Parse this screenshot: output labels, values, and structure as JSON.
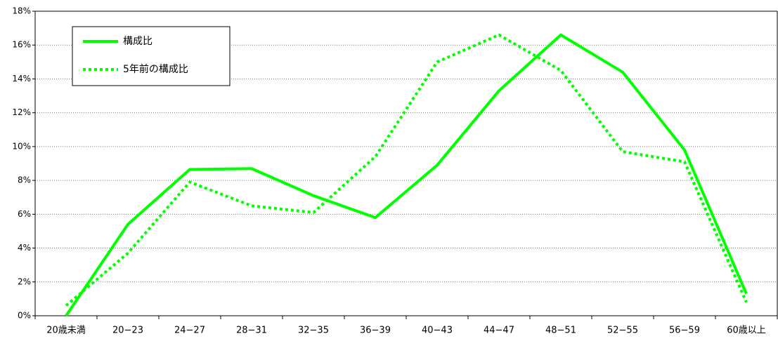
{
  "chart_data": {
    "type": "line",
    "categories": [
      "20歳未満",
      "20−23",
      "24−27",
      "28−31",
      "32−35",
      "36−39",
      "40−43",
      "44−47",
      "48−51",
      "52−55",
      "56−59",
      "60歳以上"
    ],
    "series": [
      {
        "name": "構成比",
        "color": "#00ff00",
        "style": "solid",
        "values": [
          0,
          5.4,
          8.65,
          8.7,
          7.1,
          5.8,
          8.9,
          13.3,
          16.6,
          14.4,
          9.8,
          1.3
        ]
      },
      {
        "name": "5年前の構成比",
        "color": "#00ff00",
        "style": "dotted",
        "values": [
          0.6,
          3.7,
          7.9,
          6.5,
          6.1,
          9.4,
          15.0,
          16.6,
          14.5,
          9.7,
          9.1,
          0.8
        ]
      }
    ],
    "ylim": [
      0,
      18
    ],
    "yticks": [
      {
        "value": 0,
        "label": "0%"
      },
      {
        "value": 2,
        "label": "2%"
      },
      {
        "value": 4,
        "label": "4%"
      },
      {
        "value": 6,
        "label": "6%"
      },
      {
        "value": 8,
        "label": "8%"
      },
      {
        "value": 10,
        "label": "10%"
      },
      {
        "value": 12,
        "label": "12%"
      },
      {
        "value": 14,
        "label": "14%"
      },
      {
        "value": 16,
        "label": "16%"
      },
      {
        "value": 18,
        "label": "18%"
      }
    ],
    "grid": true,
    "legend": "upper left"
  }
}
